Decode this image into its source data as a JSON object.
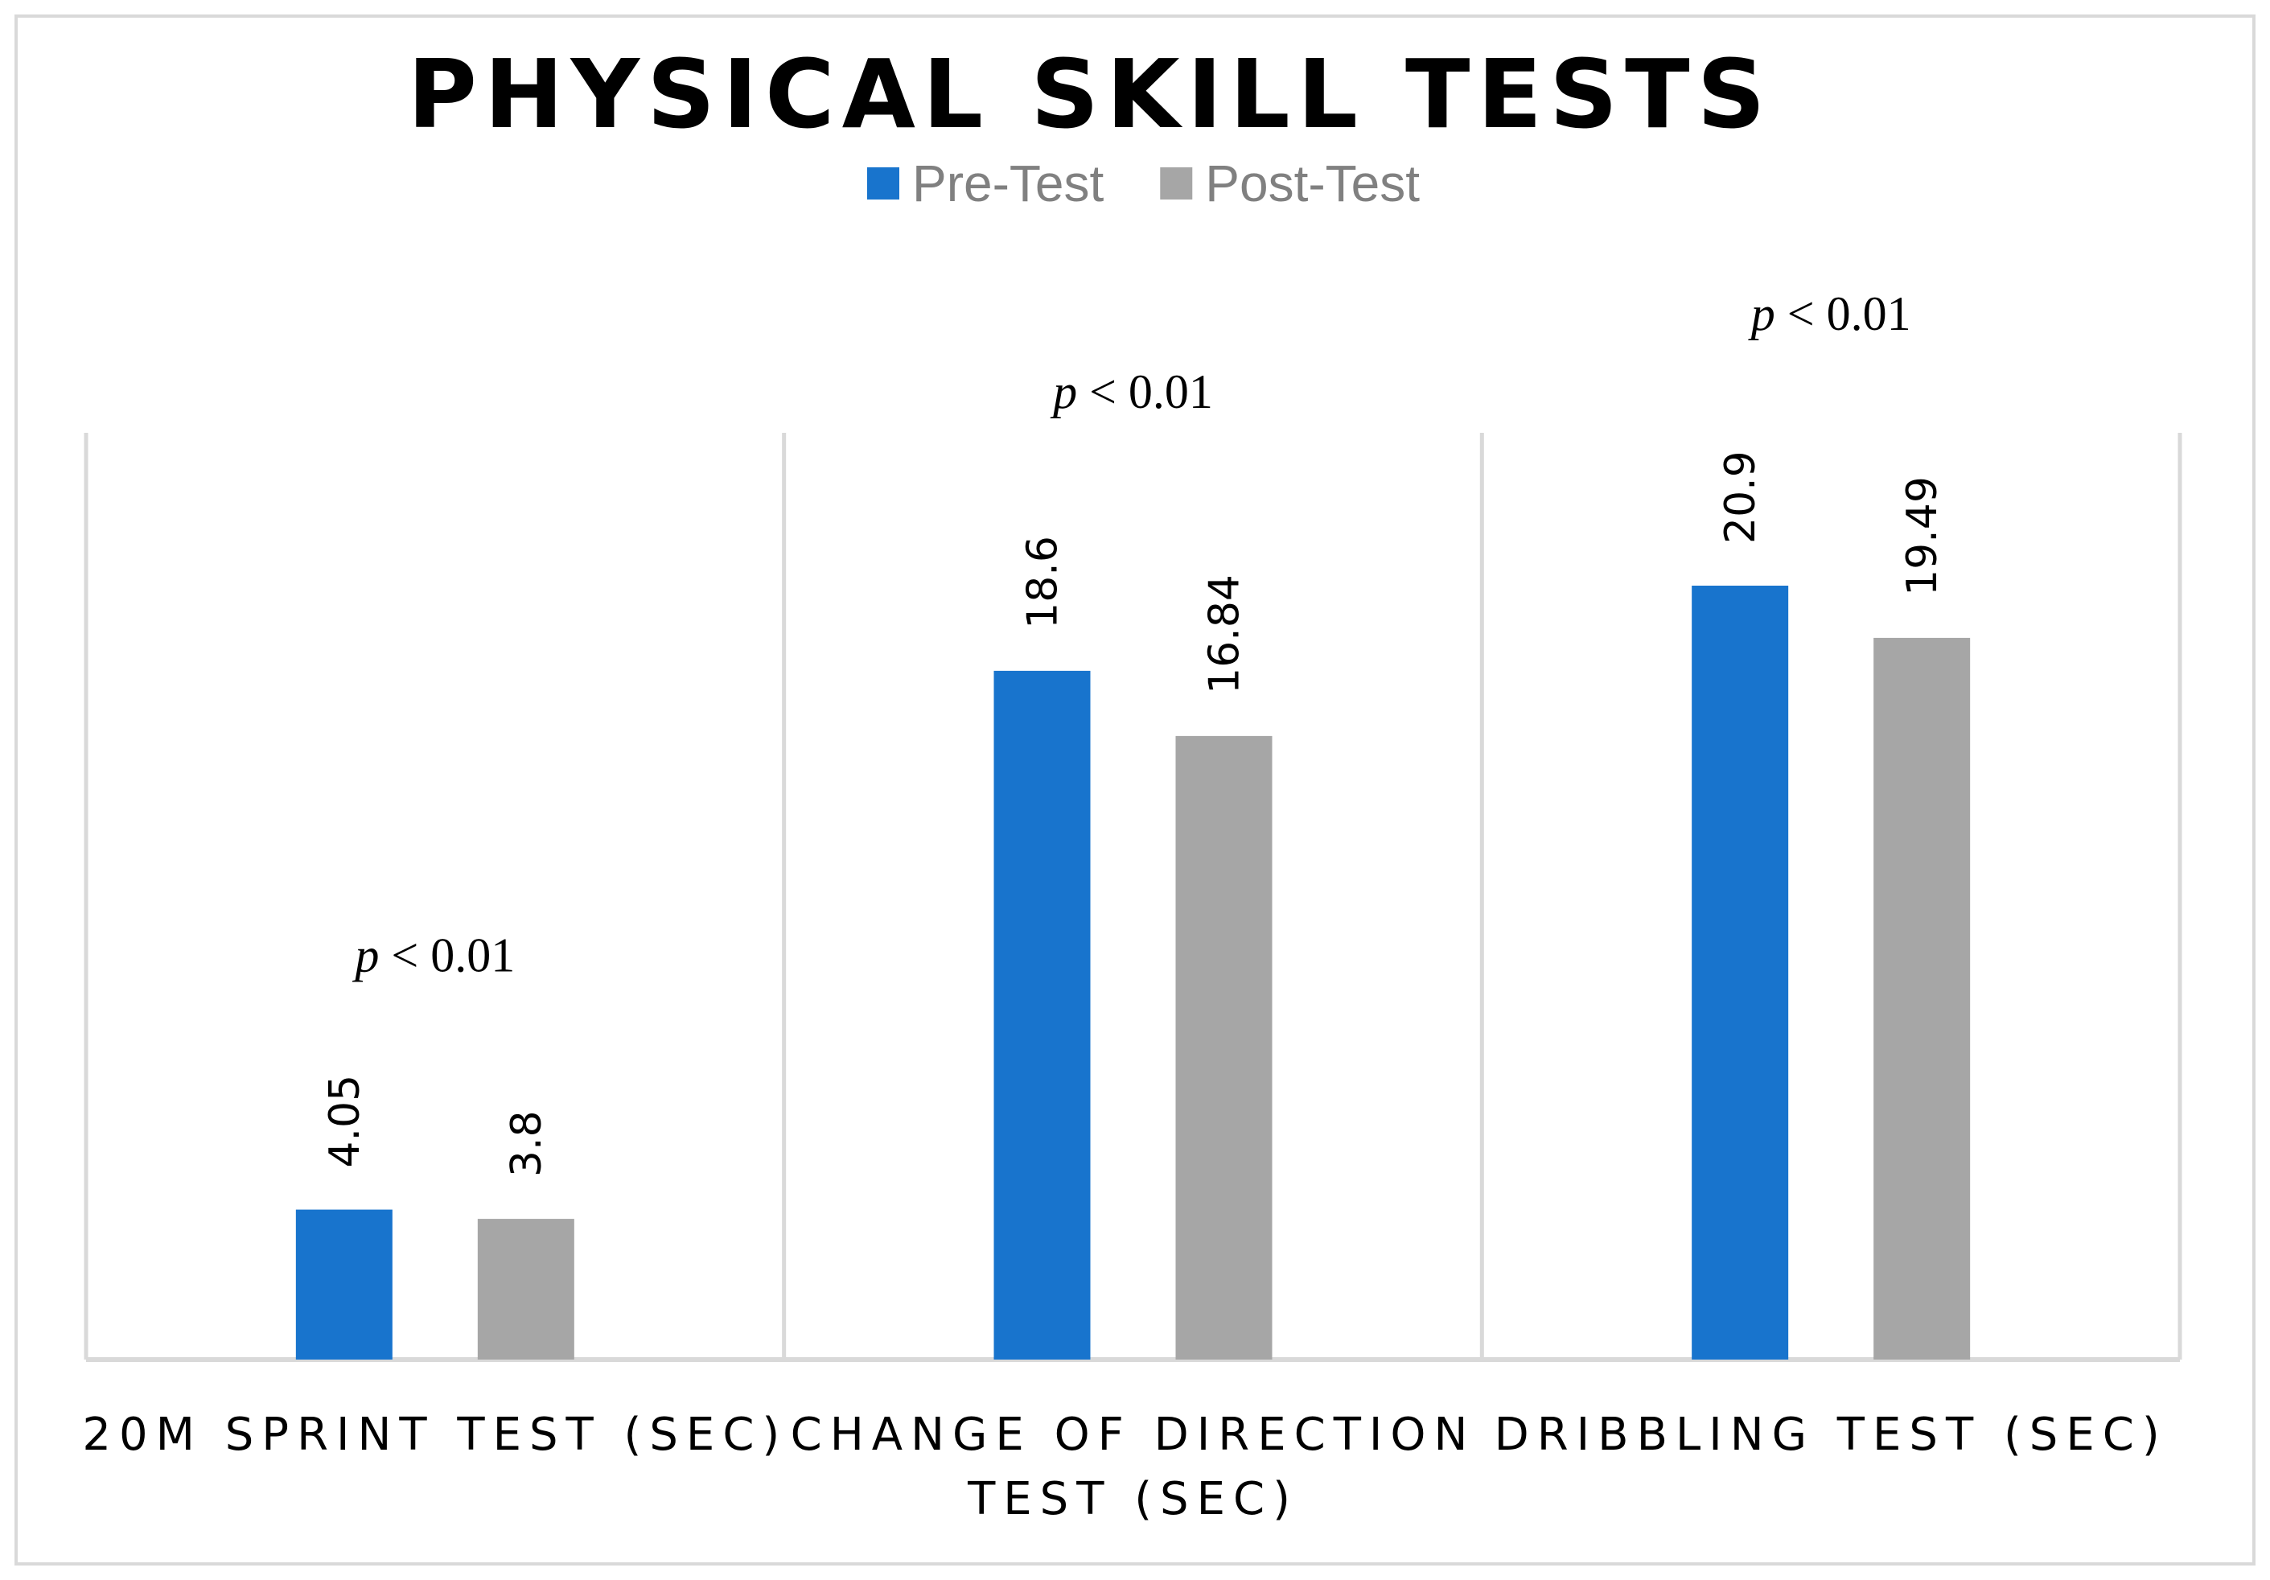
{
  "chart_data": {
    "type": "bar",
    "title": "PHYSICAL SKILL TESTS",
    "categories": [
      [
        "20M SPRINT TEST (SEC)"
      ],
      [
        "CHANGE OF DIRECTION",
        "TEST (SEC)"
      ],
      [
        "DRIBBLING TEST (SEC)"
      ]
    ],
    "series": [
      {
        "name": "Pre-Test",
        "color": "#1874cd",
        "values": [
          4.05,
          18.6,
          20.9
        ]
      },
      {
        "name": "Post-Test",
        "color": "#a6a6a6",
        "values": [
          3.8,
          16.84,
          19.49
        ]
      }
    ],
    "annotations": [
      {
        "category_index": 0,
        "italic": "p",
        "rest": " < 0.01"
      },
      {
        "category_index": 1,
        "italic": "p",
        "rest": " < 0.01"
      },
      {
        "category_index": 2,
        "italic": "p",
        "rest": " < 0.01"
      }
    ],
    "ylim": [
      0,
      25
    ],
    "grid": false,
    "legend": "top-center",
    "data_labels": "rotated-above-bars"
  }
}
